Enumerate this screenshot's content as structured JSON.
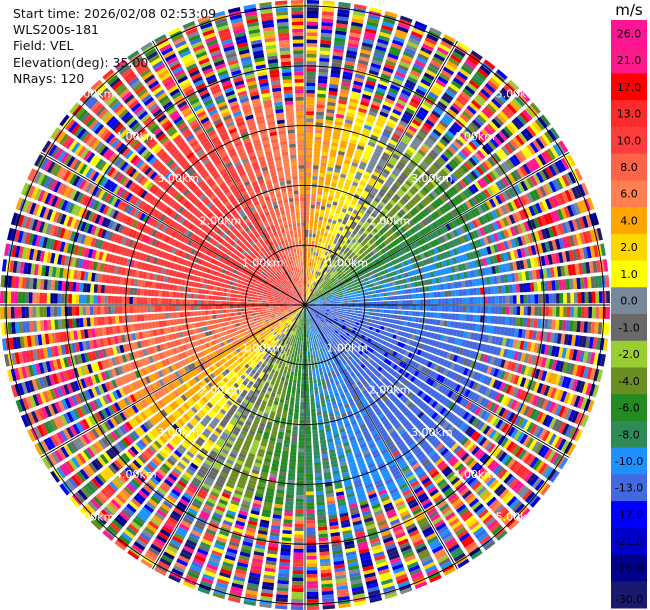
{
  "header": {
    "start_time": "Start time: 2026/02/08 02:53:09",
    "instrument": "WLS200s-181",
    "field": "Field: VEL",
    "elevation": "Elevation(deg): 35.00",
    "nrays": "NRays: 120"
  },
  "colorbar": {
    "title": "m/s",
    "ticks": [
      "26.0",
      "21.0",
      "17.0",
      "13.0",
      "10.0",
      "8.0",
      "6.0",
      "4.0",
      "2.0",
      "1.0",
      "0.0",
      "-1.0",
      "-2.0",
      "-4.0",
      "-6.0",
      "-8.0",
      "-10.0",
      "-13.0",
      "-17.0",
      "-21.0",
      "-26.0",
      "-30.0"
    ],
    "colors": [
      "#ff1493",
      "#ff1a8c",
      "#ff0000",
      "#ff2a2a",
      "#ff3d3d",
      "#ff6347",
      "#ff7f50",
      "#ffa500",
      "#ffd700",
      "#ffff00",
      "#778899",
      "#696969",
      "#9acd32",
      "#6b8e23",
      "#228b22",
      "#2e8b57",
      "#1e90ff",
      "#4169e1",
      "#0000ff",
      "#0000cd",
      "#00008b",
      "#191970"
    ]
  },
  "chart_data": {
    "type": "ppi",
    "field": "VEL",
    "units": "m/s",
    "nrays": 120,
    "range_rings_km": [
      1,
      2,
      3,
      4,
      5
    ],
    "ring_labels": [
      "1.00km",
      "2.00km",
      "3.00km",
      "4.00km",
      "5.00km"
    ],
    "max_range_km": 5.1,
    "legend": "right",
    "velocity_pattern": {
      "toward_flow_azimuth_deg": 120,
      "max_abs_velocity_ms": 12,
      "valid_data_range_km": 3.2
    }
  }
}
